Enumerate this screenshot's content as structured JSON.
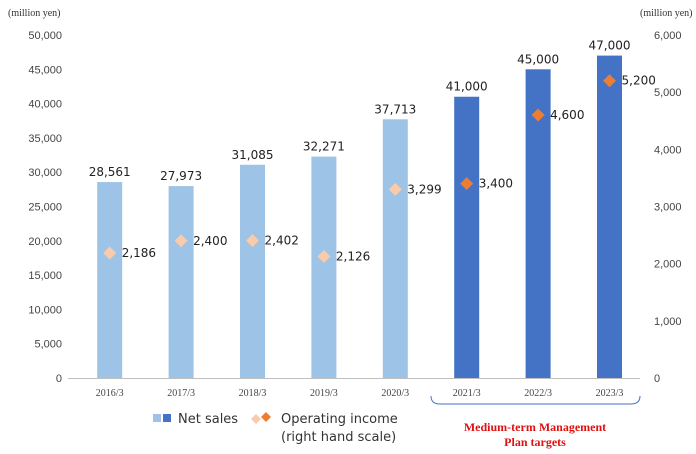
{
  "chart_data": {
    "type": "bar",
    "categories": [
      "2016/3",
      "2017/3",
      "2018/3",
      "2019/3",
      "2020/3",
      "2021/3",
      "2022/3",
      "2023/3"
    ],
    "series": [
      {
        "name": "Net sales",
        "values": [
          28561,
          27973,
          31085,
          32271,
          37713,
          41000,
          45000,
          47000
        ],
        "value_labels": [
          "28,561",
          "27,973",
          "31,085",
          "32,271",
          "37,713",
          "41,000",
          "45,000",
          "47,000"
        ],
        "axis": "left",
        "colors": [
          "#9dc3e6",
          "#9dc3e6",
          "#9dc3e6",
          "#9dc3e6",
          "#9dc3e6",
          "#4472c4",
          "#4472c4",
          "#4472c4"
        ]
      },
      {
        "name": "Operating income (right hand scale)",
        "values": [
          2186,
          2400,
          2402,
          2126,
          3299,
          3400,
          4600,
          5200
        ],
        "value_labels": [
          "2,186",
          "2,400",
          "2,402",
          "2,126",
          "3,299",
          "3,400",
          "4,600",
          "5,200"
        ],
        "axis": "right",
        "marker": "diamond",
        "colors": [
          "#f8cbad",
          "#f8cbad",
          "#f8cbad",
          "#f8cbad",
          "#f8cbad",
          "#ed7d31",
          "#ed7d31",
          "#ed7d31"
        ]
      }
    ],
    "y_left": {
      "unit": "(million yen)",
      "range": [
        0,
        50000
      ],
      "ticks": [
        "0",
        "5,000",
        "10,000",
        "15,000",
        "20,000",
        "25,000",
        "30,000",
        "35,000",
        "40,000",
        "45,000",
        "50,000"
      ]
    },
    "y_right": {
      "unit": "(million yen)",
      "range": [
        0,
        6000
      ],
      "ticks": [
        "0",
        "1,000",
        "2,000",
        "3,000",
        "4,000",
        "5,000",
        "6,000"
      ]
    },
    "grid": false,
    "legend": {
      "placement": "bottom",
      "net_sales_label": "Net sales",
      "oi_label_line1": "Operating income",
      "oi_label_line2": "(right hand scale)"
    },
    "annotation": {
      "line1": "Medium-term Management",
      "line2": "Plan targets",
      "color": "#e01010",
      "covers": [
        "2021/3",
        "2022/3",
        "2023/3"
      ]
    }
  }
}
